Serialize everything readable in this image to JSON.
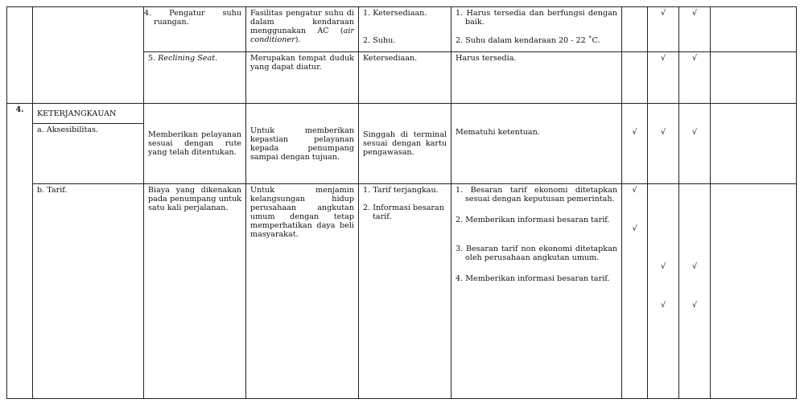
{
  "check_symbol": "√",
  "rows": {
    "pengatur_suhu": {
      "item": "4. Pengatur suhu ruangan.",
      "definisi_plain": "Fasilitas pengatur suhu di dalam kendaraan menggunakan AC (",
      "definisi_italic": "air conditioner",
      "definisi_end": ").",
      "indikator": [
        "1. Ketersediaan.",
        "2. Suhu."
      ],
      "tolok_ukur": [
        "1. Harus tersedia dan berfungsi dengan baik.",
        "2. Suhu dalam kendaraan 20 - 22 ˚C."
      ],
      "checks": [
        false,
        true,
        true
      ]
    },
    "reclining_seat": {
      "item_num": "5. ",
      "item_italic": "Reclining Seat",
      "item_end": ".",
      "definisi": "Merupakan tempat duduk yang dapat diatur.",
      "indikator": "Ketersediaan.",
      "tolok_ukur": "Harus tersedia.",
      "checks": [
        false,
        true,
        true
      ]
    },
    "keterjangkauan": {
      "no": "4.",
      "title": "KETERJANGKAUAN"
    },
    "aksesibilitas": {
      "item": "a. Aksesibilitas.",
      "uraian": "Memberikan pelayanan sesuai dengan rute yang telah ditentukan.",
      "tujuan": "Untuk memberikan kepastian pelayanan kepada penumpang sampai dengan tujuan.",
      "indikator": "Singgah di terminal sesuai dengan kartu pengawasan.",
      "tolok_ukur": "Mematuhi ketentuan.",
      "checks": [
        true,
        true,
        true
      ]
    },
    "tarif": {
      "item": "b. Tarif.",
      "uraian": "Biaya yang dikenakan pada penumpang untuk satu kali perjalanan.",
      "tujuan": "Untuk menjamin kelangsungan hidup perusahaan angkutan umum dengan tetap memperhatikan daya beli masyarakat.",
      "indikator": [
        "1. Tarif terjangkau.",
        "2. Informasi besaran tarif."
      ],
      "tolok_ukur": [
        {
          "text": "1. Besaran tarif ekonomi ditetapkan sesuai dengan keputusan pemerintah.",
          "checks": [
            true,
            false,
            false
          ]
        },
        {
          "text": "2. Memberikan informasi besaran tarif.",
          "checks": [
            true,
            false,
            false
          ]
        },
        {
          "text": "3. Besaran tarif non ekonomi ditetapkan oleh perusahaan angkutan umum.",
          "checks": [
            false,
            true,
            true
          ]
        },
        {
          "text": "4. Memberikan informasi besaran tarif.",
          "checks": [
            false,
            true,
            true
          ]
        }
      ]
    }
  }
}
